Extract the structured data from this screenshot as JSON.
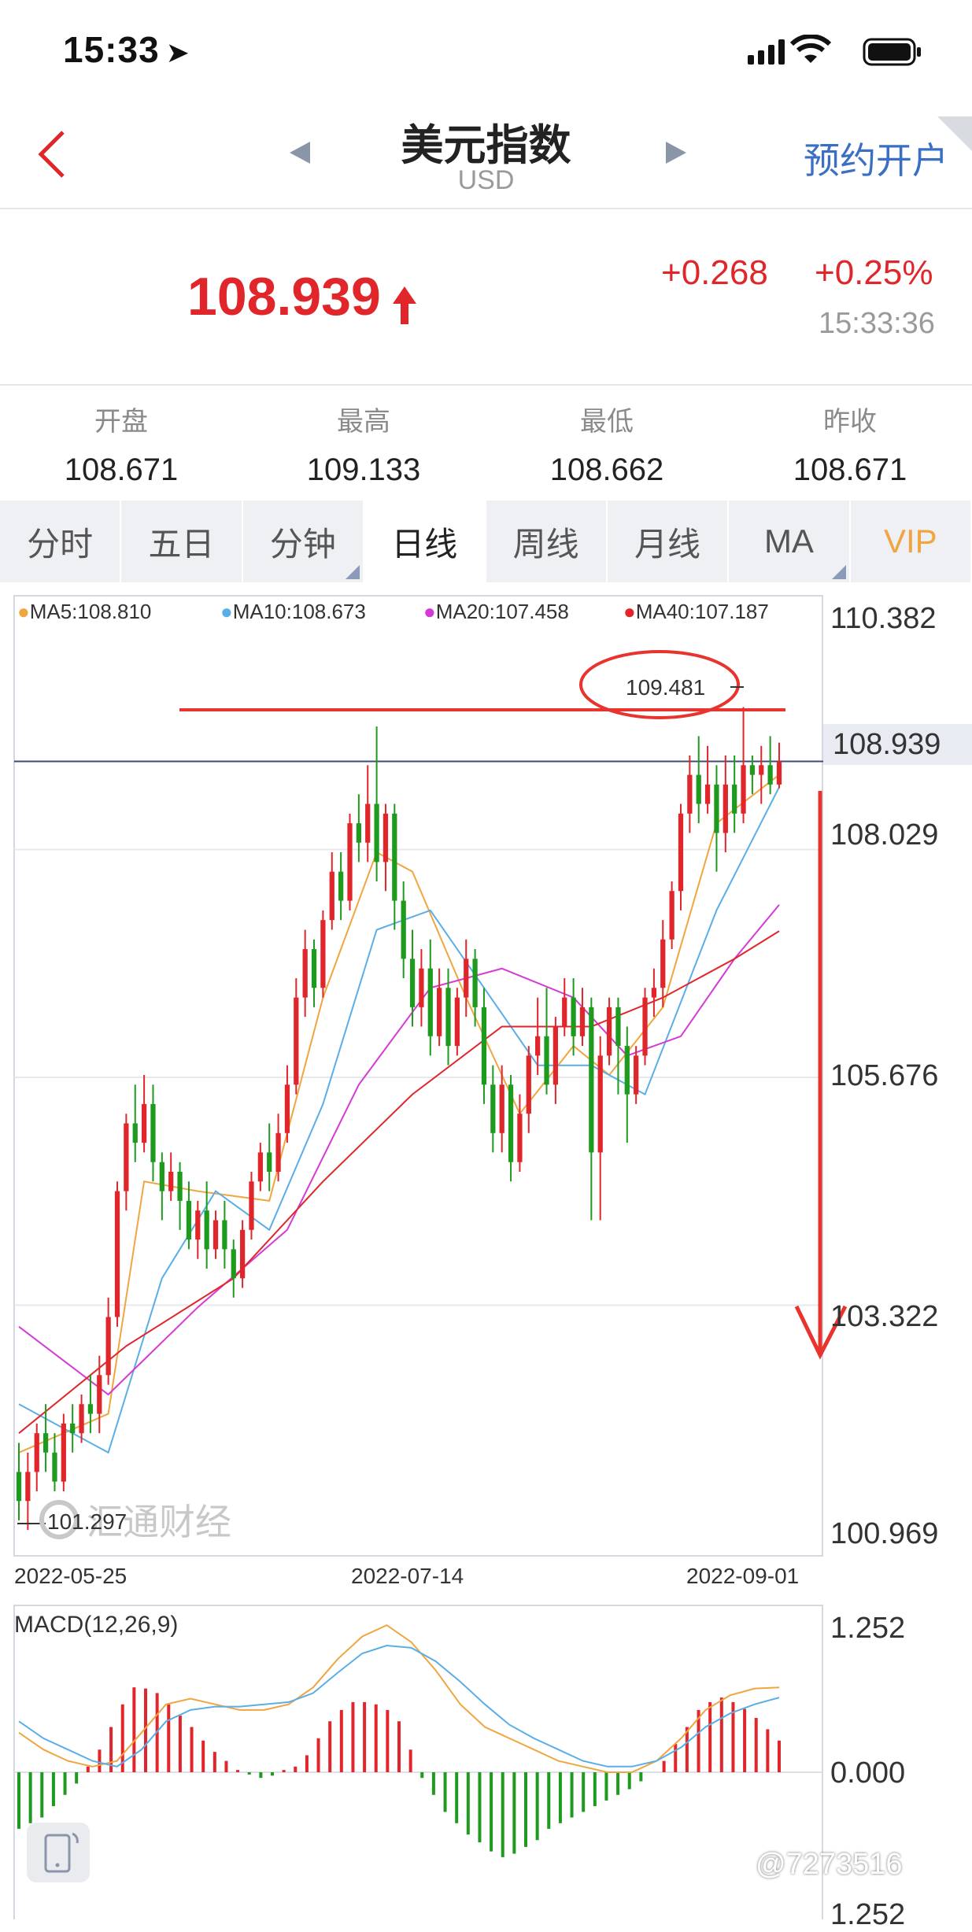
{
  "status_bar": {
    "time": "15:33"
  },
  "header": {
    "title": "美元指数",
    "subtitle": "USD",
    "reserve_label": "预约开户"
  },
  "quote": {
    "price": "108.939",
    "change": "+0.268",
    "change_pct": "+0.25%",
    "time": "15:33:36",
    "up_color": "#e0262b"
  },
  "stats": [
    {
      "label": "开盘",
      "value": "108.671"
    },
    {
      "label": "最高",
      "value": "109.133"
    },
    {
      "label": "最低",
      "value": "108.662"
    },
    {
      "label": "昨收",
      "value": "108.671"
    }
  ],
  "tabs": [
    {
      "label": "分时",
      "active": false,
      "has_menu": false
    },
    {
      "label": "五日",
      "active": false,
      "has_menu": false
    },
    {
      "label": "分钟",
      "active": false,
      "has_menu": true
    },
    {
      "label": "日线",
      "active": true,
      "has_menu": false
    },
    {
      "label": "周线",
      "active": false,
      "has_menu": false
    },
    {
      "label": "月线",
      "active": false,
      "has_menu": false
    },
    {
      "label": "MA",
      "active": false,
      "has_menu": true
    },
    {
      "label": "VIP",
      "active": false,
      "has_menu": false,
      "color": "#f0a640"
    }
  ],
  "ma_legend": [
    {
      "text": "MA5:108.810",
      "color": "#f0a640"
    },
    {
      "text": "MA10:108.673",
      "color": "#5aaee8"
    },
    {
      "text": "MA20:107.458",
      "color": "#d63ad6"
    },
    {
      "text": "MA40:107.187",
      "color": "#e0262b"
    }
  ],
  "price_axis": [
    "110.382",
    "108.939",
    "108.029",
    "105.676",
    "103.322",
    "100.969"
  ],
  "dates": [
    "2022-05-25",
    "2022-07-14",
    "2022-09-01"
  ],
  "annotations": {
    "high_marker": "109.481",
    "low_marker": "101.297"
  },
  "watermark": "汇通财经",
  "macd": {
    "title": "MACD(12,26,9)",
    "axis": [
      "1.252",
      "0.000",
      "1.252"
    ]
  },
  "credit": "@7273516",
  "colors": {
    "accent_blue": "#3a6fc4",
    "down_green": "#1e9a1e",
    "annotation_red": "#e8332e"
  },
  "chart_data": {
    "type": "candlestick",
    "x_start": "2022-05-25",
    "x_end": "2022-09-01",
    "ylim": [
      100.969,
      110.382
    ],
    "last_price": 108.939,
    "candles": [
      [
        101.6,
        101.3,
        101.9,
        101.1
      ],
      [
        101.3,
        101.6,
        101.8,
        101.0
      ],
      [
        101.6,
        102.0,
        102.1,
        101.4
      ],
      [
        102.0,
        101.8,
        102.3,
        101.6
      ],
      [
        101.8,
        101.5,
        102.0,
        101.4
      ],
      [
        101.5,
        102.1,
        102.2,
        101.4
      ],
      [
        102.1,
        102.0,
        102.3,
        101.8
      ],
      [
        102.0,
        102.3,
        102.4,
        101.9
      ],
      [
        102.3,
        102.2,
        102.6,
        102.0
      ],
      [
        102.2,
        102.6,
        102.8,
        102.0
      ],
      [
        102.6,
        103.2,
        103.4,
        102.5
      ],
      [
        103.2,
        104.5,
        104.6,
        103.1
      ],
      [
        104.5,
        105.2,
        105.3,
        104.3
      ],
      [
        105.2,
        105.0,
        105.6,
        104.8
      ],
      [
        105.0,
        105.4,
        105.7,
        104.9
      ],
      [
        105.4,
        104.8,
        105.6,
        104.6
      ],
      [
        104.8,
        104.5,
        104.9,
        104.2
      ],
      [
        104.5,
        104.7,
        104.9,
        104.4
      ],
      [
        104.7,
        104.4,
        104.8,
        104.1
      ],
      [
        104.4,
        104.0,
        104.6,
        103.9
      ],
      [
        104.0,
        104.3,
        104.4,
        103.8
      ],
      [
        104.3,
        103.9,
        104.6,
        103.7
      ],
      [
        103.9,
        104.2,
        104.3,
        103.8
      ],
      [
        104.2,
        103.9,
        104.4,
        103.7
      ],
      [
        103.9,
        103.6,
        104.0,
        103.4
      ],
      [
        103.6,
        104.1,
        104.2,
        103.5
      ],
      [
        104.1,
        104.6,
        104.7,
        104.0
      ],
      [
        104.6,
        104.9,
        105.0,
        104.5
      ],
      [
        104.9,
        104.7,
        105.2,
        104.5
      ],
      [
        104.7,
        105.1,
        105.3,
        104.6
      ],
      [
        105.1,
        105.6,
        105.8,
        105.0
      ],
      [
        105.6,
        106.5,
        106.7,
        105.5
      ],
      [
        106.5,
        107.0,
        107.2,
        106.3
      ],
      [
        107.0,
        106.6,
        107.1,
        106.4
      ],
      [
        106.6,
        107.3,
        107.4,
        106.5
      ],
      [
        107.3,
        107.8,
        108.0,
        107.2
      ],
      [
        107.8,
        107.5,
        108.0,
        107.3
      ],
      [
        107.5,
        108.3,
        108.4,
        107.4
      ],
      [
        108.3,
        108.1,
        108.6,
        107.9
      ],
      [
        108.1,
        108.5,
        108.9,
        107.9
      ],
      [
        108.5,
        107.9,
        109.3,
        107.7
      ],
      [
        107.9,
        108.4,
        108.5,
        107.6
      ],
      [
        108.4,
        107.5,
        108.5,
        107.2
      ],
      [
        107.5,
        106.9,
        107.7,
        106.7
      ],
      [
        106.9,
        106.4,
        107.2,
        106.2
      ],
      [
        106.4,
        106.8,
        107.0,
        106.2
      ],
      [
        106.8,
        106.1,
        107.1,
        105.9
      ],
      [
        106.1,
        106.6,
        106.8,
        106.0
      ],
      [
        106.6,
        106.0,
        106.8,
        105.8
      ],
      [
        106.0,
        106.5,
        106.6,
        105.9
      ],
      [
        106.5,
        106.9,
        107.1,
        106.3
      ],
      [
        106.9,
        106.4,
        107.0,
        106.2
      ],
      [
        106.4,
        105.6,
        106.6,
        105.4
      ],
      [
        105.6,
        105.1,
        105.8,
        104.9
      ],
      [
        105.1,
        105.6,
        105.8,
        104.9
      ],
      [
        105.6,
        104.8,
        105.7,
        104.6
      ],
      [
        104.8,
        105.3,
        105.5,
        104.7
      ],
      [
        105.3,
        105.9,
        106.0,
        105.1
      ],
      [
        105.9,
        106.1,
        106.5,
        105.7
      ],
      [
        106.1,
        105.6,
        106.6,
        105.5
      ],
      [
        105.6,
        106.2,
        106.3,
        105.4
      ],
      [
        106.2,
        106.5,
        106.7,
        106.1
      ],
      [
        106.5,
        106.1,
        106.7,
        105.9
      ],
      [
        106.1,
        106.4,
        106.6,
        106.0
      ],
      [
        106.4,
        104.9,
        106.5,
        104.2
      ],
      [
        104.9,
        105.9,
        106.1,
        104.2
      ],
      [
        105.9,
        106.4,
        106.5,
        105.8
      ],
      [
        106.4,
        106.0,
        106.5,
        105.5
      ],
      [
        106.0,
        105.5,
        106.2,
        105.0
      ],
      [
        105.5,
        105.9,
        106.0,
        105.4
      ],
      [
        105.9,
        106.5,
        106.6,
        105.8
      ],
      [
        106.5,
        106.6,
        106.8,
        106.3
      ],
      [
        106.6,
        107.1,
        107.3,
        106.4
      ],
      [
        107.1,
        107.6,
        107.7,
        107.0
      ],
      [
        107.6,
        108.4,
        108.5,
        107.4
      ],
      [
        108.4,
        108.8,
        109.0,
        108.2
      ],
      [
        108.8,
        108.5,
        109.2,
        108.3
      ],
      [
        108.5,
        108.7,
        109.1,
        108.4
      ],
      [
        108.7,
        108.2,
        108.9,
        107.8
      ],
      [
        108.2,
        108.7,
        109.0,
        108.0
      ],
      [
        108.7,
        108.4,
        109.0,
        108.2
      ],
      [
        108.4,
        108.9,
        109.5,
        108.3
      ],
      [
        108.9,
        108.8,
        109.0,
        108.6
      ],
      [
        108.8,
        108.9,
        109.1,
        108.5
      ],
      [
        108.9,
        108.7,
        109.2,
        108.6
      ],
      [
        108.7,
        108.939,
        109.133,
        108.662
      ]
    ],
    "ma_series": [
      {
        "name": "MA5",
        "color": "#f0a640",
        "values": [
          [
            0,
            101.8
          ],
          [
            10,
            102.2
          ],
          [
            14,
            104.6
          ],
          [
            20,
            104.5
          ],
          [
            28,
            104.4
          ],
          [
            34,
            106.5
          ],
          [
            40,
            108.0
          ],
          [
            44,
            107.8
          ],
          [
            50,
            106.5
          ],
          [
            56,
            105.3
          ],
          [
            62,
            106.0
          ],
          [
            66,
            105.7
          ],
          [
            72,
            106.4
          ],
          [
            78,
            108.3
          ],
          [
            85,
            108.8
          ]
        ]
      },
      {
        "name": "MA10",
        "color": "#5aaee8",
        "values": [
          [
            0,
            102.3
          ],
          [
            10,
            101.8
          ],
          [
            16,
            103.6
          ],
          [
            22,
            104.5
          ],
          [
            28,
            104.1
          ],
          [
            34,
            105.4
          ],
          [
            40,
            107.2
          ],
          [
            46,
            107.4
          ],
          [
            52,
            106.6
          ],
          [
            58,
            105.8
          ],
          [
            64,
            105.8
          ],
          [
            70,
            105.5
          ],
          [
            78,
            107.4
          ],
          [
            85,
            108.673
          ]
        ]
      },
      {
        "name": "MA20",
        "color": "#d63ad6",
        "values": [
          [
            0,
            103.1
          ],
          [
            10,
            102.4
          ],
          [
            20,
            103.3
          ],
          [
            30,
            104.1
          ],
          [
            38,
            105.6
          ],
          [
            46,
            106.6
          ],
          [
            54,
            106.8
          ],
          [
            62,
            106.5
          ],
          [
            68,
            105.9
          ],
          [
            74,
            106.1
          ],
          [
            80,
            106.9
          ],
          [
            85,
            107.458
          ]
        ]
      },
      {
        "name": "MA40",
        "color": "#e0262b",
        "values": [
          [
            0,
            102.0
          ],
          [
            12,
            102.9
          ],
          [
            24,
            103.6
          ],
          [
            34,
            104.6
          ],
          [
            44,
            105.5
          ],
          [
            54,
            106.2
          ],
          [
            64,
            106.2
          ],
          [
            72,
            106.5
          ],
          [
            80,
            106.9
          ],
          [
            85,
            107.187
          ]
        ]
      }
    ],
    "macd_hist": [
      -0.5,
      -0.45,
      -0.4,
      -0.3,
      -0.2,
      -0.1,
      0.05,
      0.2,
      0.4,
      0.6,
      0.75,
      0.74,
      0.7,
      0.6,
      0.5,
      0.4,
      0.28,
      0.18,
      0.1,
      0.02,
      -0.02,
      -0.05,
      -0.03,
      0.02,
      0.05,
      0.15,
      0.3,
      0.45,
      0.55,
      0.62,
      0.62,
      0.6,
      0.55,
      0.45,
      0.2,
      -0.05,
      -0.2,
      -0.35,
      -0.45,
      -0.55,
      -0.62,
      -0.7,
      -0.75,
      -0.72,
      -0.66,
      -0.6,
      -0.5,
      -0.45,
      -0.4,
      -0.35,
      -0.3,
      -0.25,
      -0.2,
      -0.15,
      -0.08,
      0.0,
      0.1,
      0.25,
      0.4,
      0.55,
      0.62,
      0.66,
      0.62,
      0.56,
      0.48,
      0.38,
      0.28
    ],
    "macd_dif": [
      0.35,
      0.2,
      0.1,
      0.05,
      0.1,
      0.35,
      0.6,
      0.65,
      0.6,
      0.55,
      0.55,
      0.6,
      0.75,
      1.0,
      1.2,
      1.3,
      1.15,
      0.9,
      0.6,
      0.4,
      0.3,
      0.2,
      0.1,
      0.05,
      0.0,
      0.0,
      0.1,
      0.3,
      0.55,
      0.68,
      0.74,
      0.75
    ],
    "macd_dea": [
      0.45,
      0.3,
      0.2,
      0.1,
      0.05,
      0.2,
      0.45,
      0.55,
      0.58,
      0.58,
      0.6,
      0.62,
      0.7,
      0.88,
      1.05,
      1.12,
      1.1,
      0.98,
      0.8,
      0.6,
      0.42,
      0.3,
      0.2,
      0.1,
      0.05,
      0.05,
      0.1,
      0.22,
      0.4,
      0.52,
      0.6,
      0.66
    ]
  }
}
